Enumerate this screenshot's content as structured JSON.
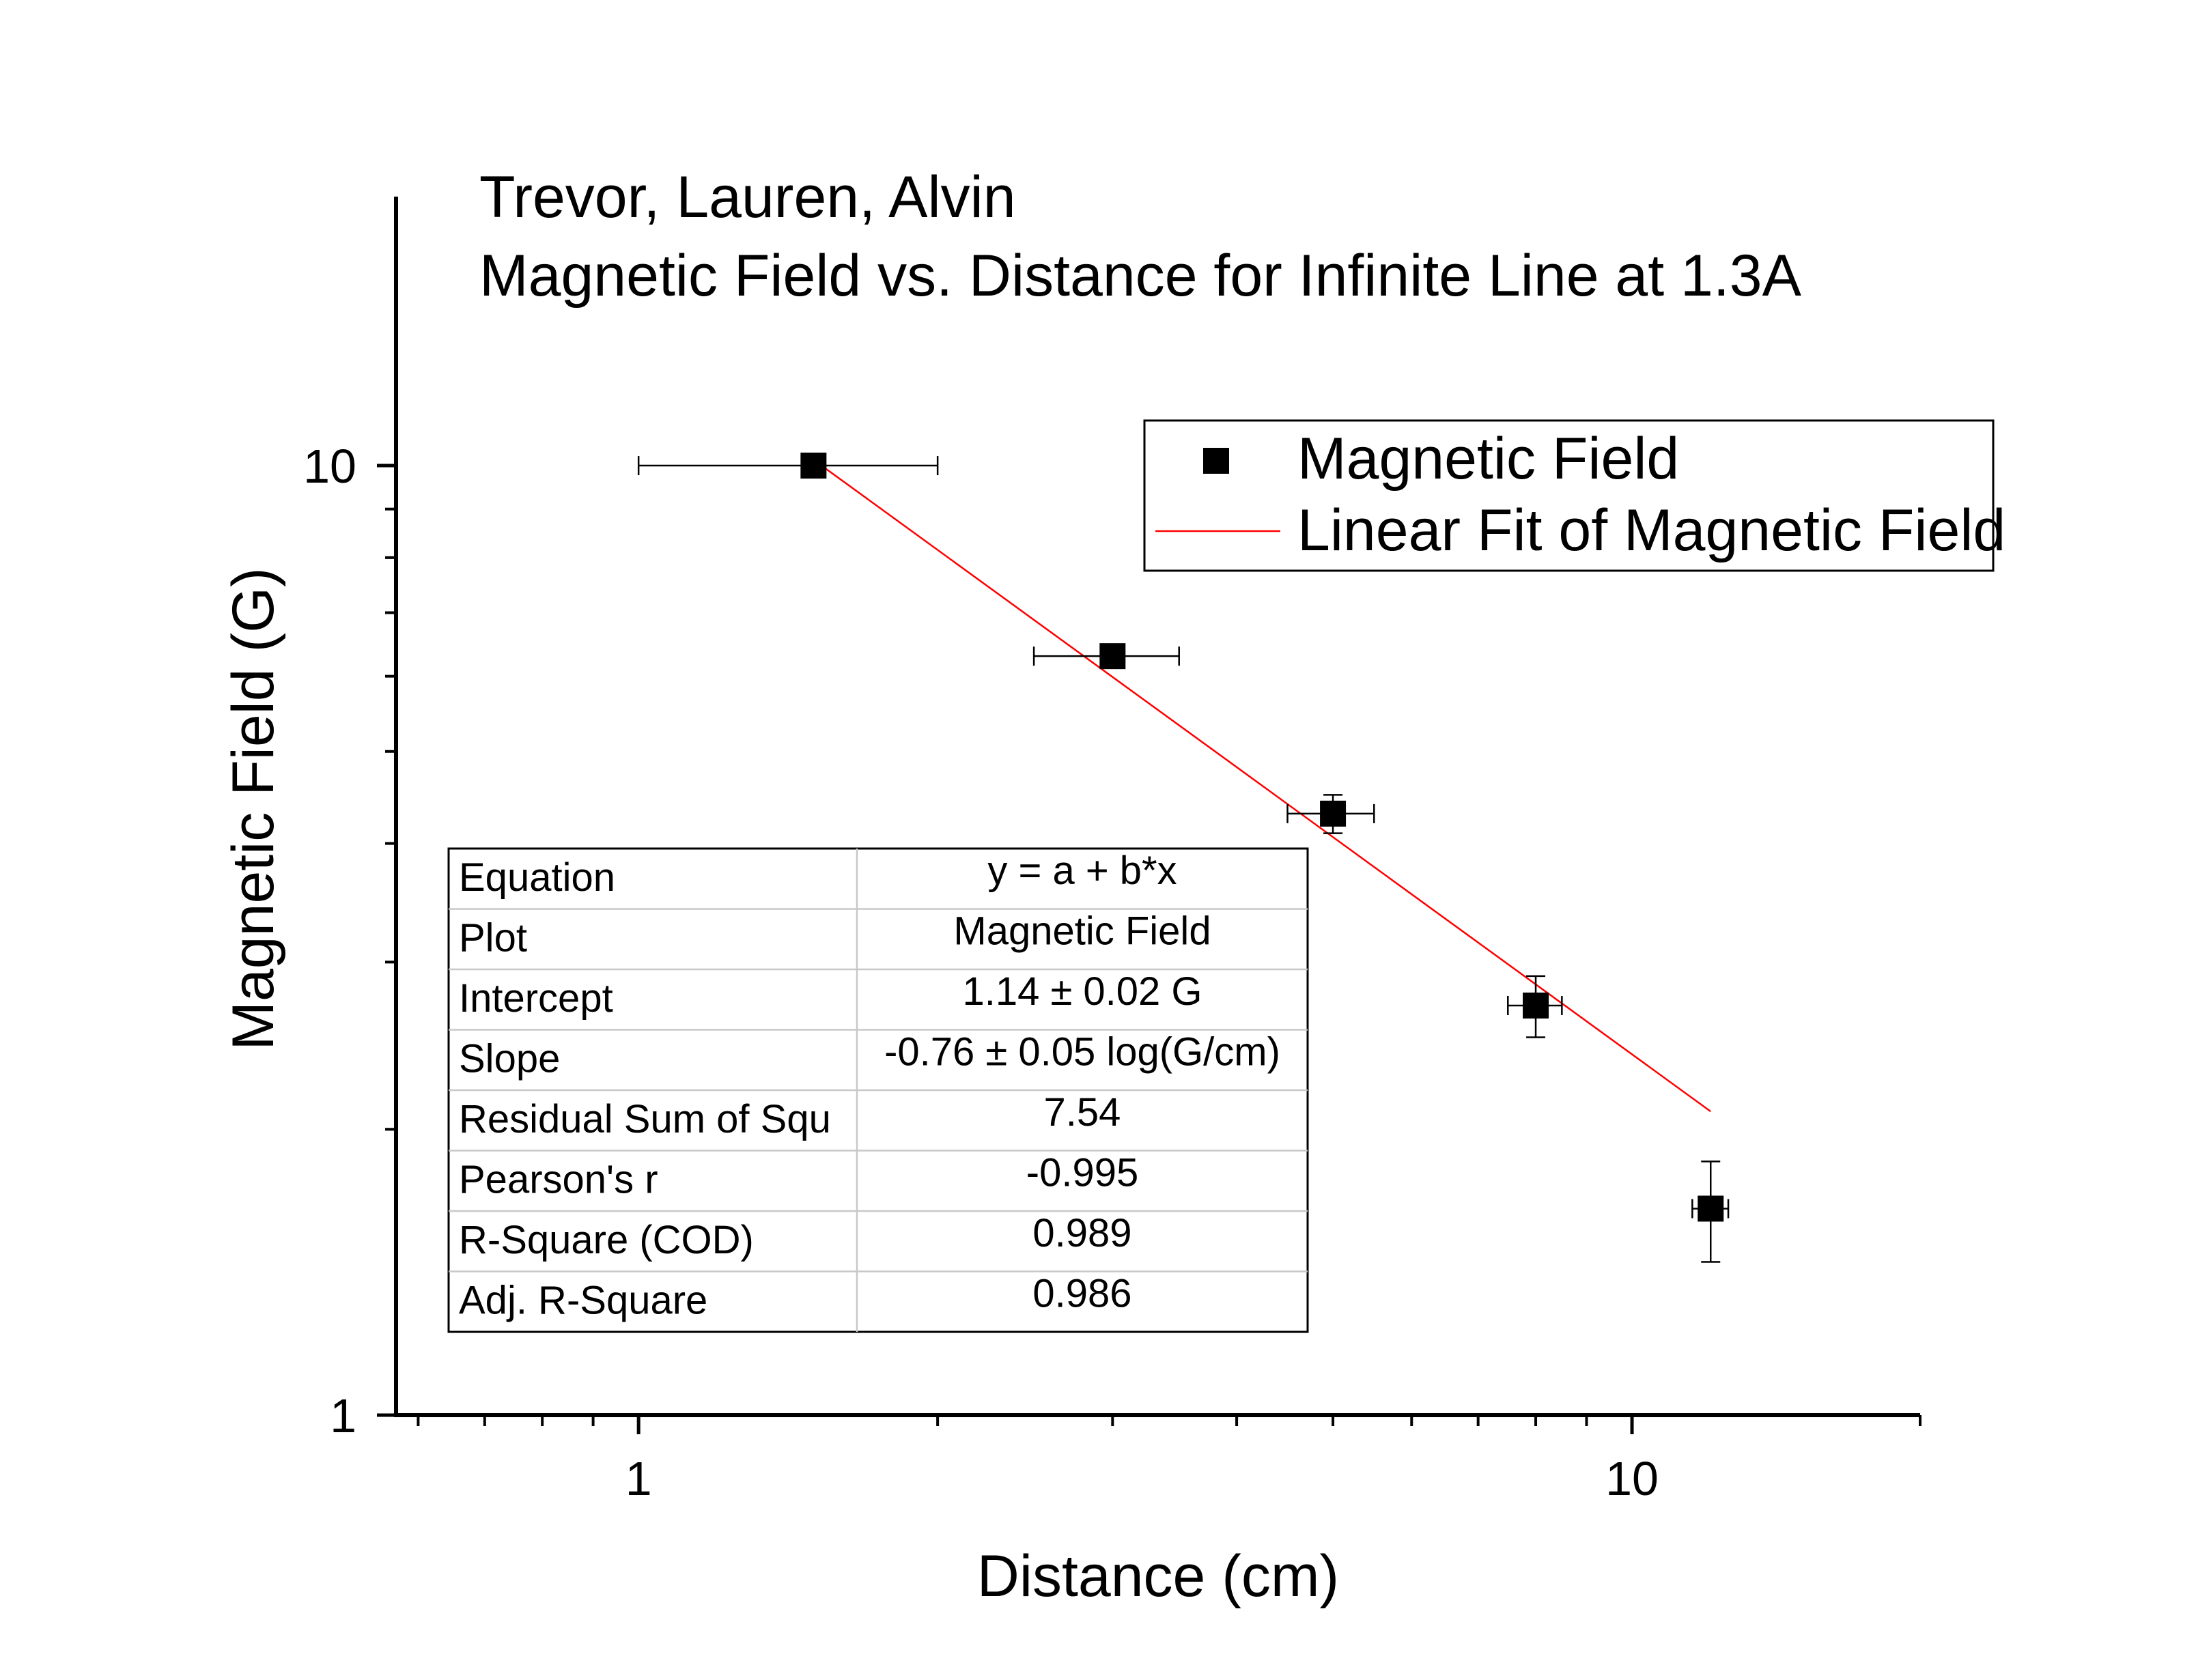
{
  "chart_data": {
    "type": "scatter",
    "title_lines": [
      "Trevor, Lauren, Alvin",
      "Magnetic Field vs. Distance for Infinite Line at 1.3A"
    ],
    "xlabel": "Distance (cm)",
    "ylabel": "Magnetic Field (G)",
    "x_scale": "log",
    "y_scale": "log",
    "xlim": [
      0.57,
      19.5
    ],
    "ylim": [
      1,
      19.2
    ],
    "x_ticks": [
      {
        "value": 1,
        "label": "1"
      },
      {
        "value": 10,
        "label": "10"
      }
    ],
    "y_ticks": [
      {
        "value": 1,
        "label": "1"
      },
      {
        "value": 10,
        "label": "10"
      }
    ],
    "grid": false,
    "legend_position": "top-right",
    "series": [
      {
        "name": "Magnetic Field",
        "kind": "points",
        "color": "#000000",
        "marker": "square",
        "points": [
          {
            "x": 1.5,
            "y": 10.0,
            "xerr": [
              0.5,
              0.5
            ],
            "yerr": [
              0,
              0
            ]
          },
          {
            "x": 3.0,
            "y": 6.3,
            "xerr": [
              0.5,
              0.5
            ],
            "yerr": [
              0,
              0
            ]
          },
          {
            "x": 5.0,
            "y": 4.3,
            "xerr": [
              0.5,
              0.5
            ],
            "yerr": [
              0.2,
              0.2
            ]
          },
          {
            "x": 8.0,
            "y": 2.7,
            "xerr": [
              0.5,
              0.5
            ],
            "yerr": [
              0.2,
              0.2
            ]
          },
          {
            "x": 12.0,
            "y": 1.65,
            "xerr": [
              0.5,
              0.5
            ],
            "yerr": [
              0.2,
              0.2
            ]
          }
        ]
      },
      {
        "name": "Linear Fit of Magnetic Field",
        "kind": "line",
        "color": "#ff0000",
        "x_range": [
          1.5,
          12.0
        ],
        "intercept": 1.14,
        "slope": -0.76
      }
    ],
    "fit_table": [
      {
        "label": "Equation",
        "value": "y = a + b*x"
      },
      {
        "label": "Plot",
        "value": "Magnetic Field"
      },
      {
        "label": "Intercept",
        "value": "1.14 ± 0.02 G"
      },
      {
        "label": "Slope",
        "value": "-0.76 ± 0.05 log(G/cm)"
      },
      {
        "label": "Residual Sum of Squ",
        "value": "7.54"
      },
      {
        "label": "Pearson's r",
        "value": "-0.995"
      },
      {
        "label": "R-Square (COD)",
        "value": "0.989"
      },
      {
        "label": "Adj. R-Square",
        "value": "0.986"
      }
    ]
  }
}
